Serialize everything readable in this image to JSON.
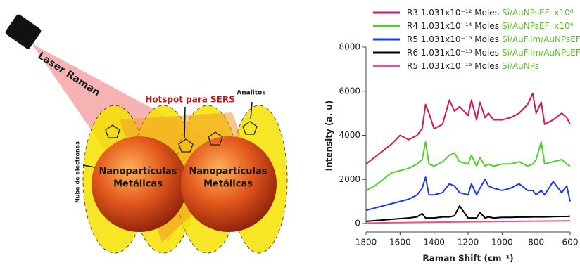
{
  "diagram": {
    "laser": "Laser Raman",
    "hotspot": "Hotspot para SERS",
    "analytes": "Analitos",
    "electron_cloud": "Nube de electrones",
    "particles": [
      [
        "Nanopartículas",
        "Metálicas"
      ],
      [
        "Nanopartículas",
        "Metálicas"
      ]
    ]
  },
  "chart_data": {
    "type": "line",
    "x_label": "Raman Shift (cm⁻¹)",
    "y_label": "Intensity (a. u)",
    "xlim": [
      1800,
      600
    ],
    "xticks": [
      1800,
      1600,
      1400,
      1200,
      1000,
      800,
      600
    ],
    "ylim": [
      0,
      8000
    ],
    "yticks": [
      0,
      2000,
      4000,
      6000,
      8000
    ],
    "x": [
      1800,
      1750,
      1700,
      1650,
      1600,
      1550,
      1500,
      1470,
      1450,
      1430,
      1400,
      1350,
      1310,
      1280,
      1250,
      1200,
      1180,
      1150,
      1130,
      1100,
      1080,
      1050,
      1000,
      950,
      900,
      850,
      820,
      800,
      770,
      750,
      700,
      650,
      620,
      600
    ],
    "substrate_color": "#5cc02a",
    "series": [
      {
        "name": "R3 1.031x10⁻¹² Moles",
        "substrate": "Si/AuNPsEF: x10⁸",
        "color": "#d3175a",
        "values": [
          2700,
          3000,
          3300,
          3600,
          4000,
          3800,
          4000,
          4300,
          5400,
          5000,
          4300,
          4500,
          5600,
          5100,
          5300,
          4900,
          5600,
          4700,
          5500,
          4800,
          5000,
          4700,
          4700,
          4800,
          5000,
          5400,
          5900,
          5000,
          5500,
          4500,
          4700,
          5000,
          4800,
          4500
        ]
      },
      {
        "name": "R4 1.031x10⁻¹⁴ Moles",
        "substrate": "Si/AuNPsEF: x10⁹",
        "color": "#4fd12a",
        "values": [
          1500,
          1700,
          2000,
          2300,
          2400,
          2500,
          2700,
          2900,
          3700,
          2700,
          2600,
          2800,
          3100,
          3200,
          2800,
          2700,
          3100,
          2600,
          3000,
          2600,
          2700,
          2600,
          2700,
          2700,
          2800,
          2600,
          2700,
          2900,
          3700,
          2700,
          2800,
          2900,
          2700,
          2600
        ]
      },
      {
        "name": "R5 1.031x10⁻¹⁶ Moles",
        "substrate": "Si/AuFilm/AuNPsEF:",
        "color": "#1a3be6",
        "values": [
          600,
          700,
          800,
          900,
          1000,
          1100,
          1300,
          1600,
          2100,
          1300,
          1300,
          1400,
          1800,
          1700,
          1400,
          1300,
          1800,
          1300,
          1600,
          2000,
          1700,
          1600,
          1500,
          1600,
          1800,
          1500,
          1500,
          1300,
          1500,
          1300,
          1900,
          1400,
          1700,
          1000
        ]
      },
      {
        "name": "R6 1.031x10⁻¹⁸ Moles",
        "substrate": "Si/AuFilm/AuNPsEF:",
        "color": "#000000",
        "values": [
          100,
          130,
          160,
          190,
          220,
          250,
          300,
          450,
          250,
          250,
          250,
          300,
          300,
          350,
          800,
          250,
          250,
          250,
          500,
          250,
          300,
          250,
          280,
          280,
          290,
          290,
          300,
          300,
          300,
          300,
          310,
          320,
          320,
          330
        ]
      },
      {
        "name": "R5 1.031x10⁻¹⁶ Moles",
        "substrate": "Si/AuNPs",
        "color": "#f0508a",
        "values": [
          20,
          25,
          30,
          35,
          40,
          45,
          50,
          52,
          54,
          56,
          58,
          62,
          65,
          67,
          70,
          74,
          76,
          78,
          80,
          83,
          85,
          88,
          92,
          96,
          100,
          104,
          106,
          108,
          110,
          112,
          116,
          120,
          122,
          124
        ]
      }
    ]
  }
}
